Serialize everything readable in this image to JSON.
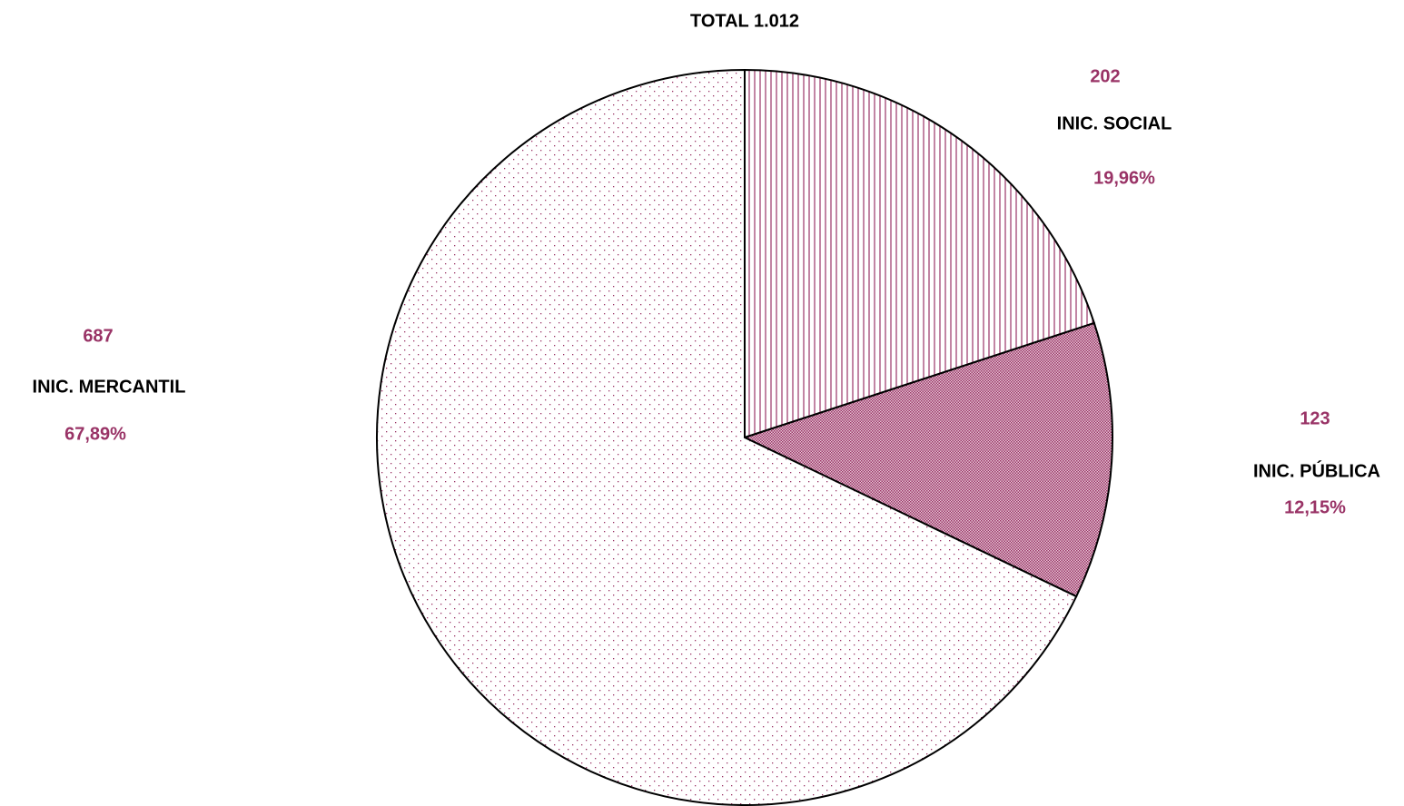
{
  "chart_data": {
    "type": "pie",
    "title": "TOTAL 1.012",
    "categories": [
      "INIC. SOCIAL",
      "INIC. PÚBLICA",
      "INIC. MERCANTIL"
    ],
    "values": [
      202,
      123,
      687
    ],
    "percentages": [
      19.96,
      12.15,
      67.89
    ],
    "percentage_labels": [
      "19,96%",
      "12,15%",
      "67,89%"
    ],
    "color": "#993366"
  }
}
